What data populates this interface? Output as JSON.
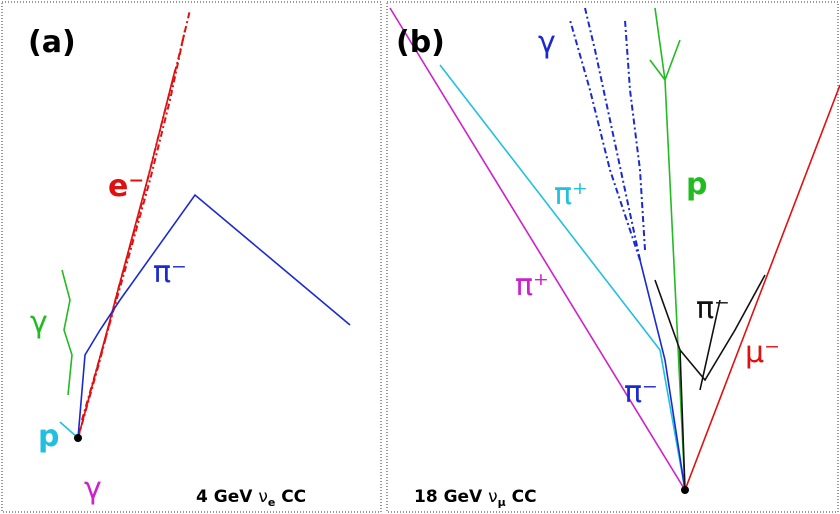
{
  "panels": [
    {
      "tag": "(a)",
      "labels": [
        "e⁻",
        "π⁻",
        "γ",
        "p",
        "γ"
      ],
      "caption": {
        "lead": "4 GeV",
        "nu": "ν",
        "sub": "e",
        "tail": "CC"
      }
    },
    {
      "tag": "(b)",
      "labels": [
        "γ",
        "π⁺",
        "p",
        "π⁻",
        "μ⁻",
        "π⁺",
        "π⁻"
      ],
      "caption": {
        "lead": "18 GeV",
        "nu": "ν",
        "sub": "μ",
        "tail": "CC"
      }
    }
  ]
}
